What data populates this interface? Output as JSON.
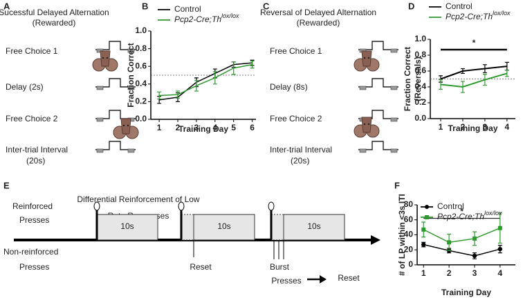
{
  "panel_a": {
    "label": "A",
    "title": [
      "Sucessful Delayed Alternation",
      "(Rewarded)"
    ],
    "steps": [
      "Free Choice 1",
      "Delay (2s)",
      "Free Choice 2",
      "Inter-trial Interval",
      "(20s)"
    ]
  },
  "panel_c": {
    "label": "C",
    "title": [
      "Reversal of Delayed Alternation",
      "(Rewarded)"
    ],
    "steps": [
      "Free Choice 1",
      "Delay (8s)",
      "Free Choice 2",
      "Inter-trial Interval",
      "(20s)"
    ]
  },
  "panel_e": {
    "label": "E",
    "title": [
      "Differential Reinforcement of Low",
      "Rate Responses"
    ],
    "reinforced": [
      "Reinforced",
      "Presses"
    ],
    "non_reinforced": [
      "Non-reinforced",
      "Presses"
    ],
    "intervals": [
      "10s",
      "10s",
      "10s"
    ],
    "reset": "Reset",
    "burst": [
      "Burst",
      "Presses"
    ],
    "burst_reset": "Reset"
  },
  "chart_data": [
    {
      "type": "line",
      "panel": "B",
      "x_label": "Training Day",
      "y_label": [
        "Fraction Correct"
      ],
      "x": [
        1,
        2,
        3,
        4,
        5,
        6
      ],
      "xlim": [
        0.55,
        6.2
      ],
      "xticks": [
        1,
        2,
        3,
        4,
        5,
        6
      ],
      "ylim": [
        0,
        1
      ],
      "yticks": [
        {
          "value": 0,
          "label": "0.0"
        },
        {
          "value": 0.2,
          "label": "0.2"
        },
        {
          "value": 0.4,
          "label": "0.4"
        },
        {
          "value": 0.6,
          "label": "0.6"
        },
        {
          "value": 0.8,
          "label": "0.8"
        },
        {
          "value": 1,
          "label": "1.0"
        }
      ],
      "reference_line": 0.5,
      "series": [
        {
          "name": "Control",
          "color": "#000000",
          "marker": "none",
          "values": [
            0.22,
            0.25,
            0.42,
            0.52,
            0.62,
            0.64
          ],
          "errors": [
            0.04,
            0.05,
            0.05,
            0.05,
            0.03,
            0.03
          ]
        },
        {
          "name": "Pcp2-Cre;Th",
          "name_superscript": "lox/lox",
          "color": "#2e9a2e",
          "marker": "none",
          "values": [
            0.27,
            0.28,
            0.38,
            0.47,
            0.58,
            0.62
          ],
          "errors": [
            0.04,
            0.04,
            0.06,
            0.07,
            0.07,
            0.04
          ]
        }
      ]
    },
    {
      "type": "line",
      "panel": "D",
      "x_label": "Training Day",
      "y_label": [
        "Fraction Correct",
        "(Reversals)"
      ],
      "x": [
        1,
        2,
        3,
        4
      ],
      "xlim": [
        0.53,
        4.38
      ],
      "xticks": [
        1,
        2,
        3,
        4
      ],
      "ylim": [
        0,
        1
      ],
      "yticks": [
        {
          "value": 0,
          "label": "0.0"
        },
        {
          "value": 0.2,
          "label": "0.2"
        },
        {
          "value": 0.4,
          "label": "0.4"
        },
        {
          "value": 0.6,
          "label": "0.6"
        },
        {
          "value": 0.8,
          "label": "0.8"
        },
        {
          "value": 1,
          "label": "1.0"
        }
      ],
      "reference_line": 0.5,
      "significance": {
        "x": [
          1,
          4
        ],
        "y": 0.87,
        "label": "*"
      },
      "series": [
        {
          "name": "Control",
          "color": "#000000",
          "marker": "none",
          "values": [
            0.5,
            0.6,
            0.63,
            0.66
          ],
          "errors": [
            0.04,
            0.03,
            0.05,
            0.05
          ]
        },
        {
          "name": "Pcp2-Cre;Th",
          "name_superscript": "lox/lox",
          "color": "#2e9a2e",
          "marker": "none",
          "values": [
            0.43,
            0.4,
            0.49,
            0.57
          ],
          "errors": [
            0.06,
            0.07,
            0.07,
            0.04
          ]
        }
      ]
    },
    {
      "type": "line",
      "panel": "F",
      "x_label": "Training Day",
      "y_label": [
        "# of LP within <3s ITI"
      ],
      "x": [
        1,
        2,
        3,
        4
      ],
      "xlim": [
        0.75,
        4.6
      ],
      "xticks": [
        1,
        2,
        3,
        4
      ],
      "ylim": [
        0,
        80
      ],
      "yticks": [
        0,
        20,
        40,
        60,
        80
      ],
      "significance": {
        "x": [
          1,
          4
        ],
        "y": 62,
        "label": "*"
      },
      "series": [
        {
          "name": "Control",
          "color": "#000000",
          "marker": "circle",
          "values": [
            27,
            19,
            12,
            21
          ],
          "errors": [
            3,
            3,
            4,
            5
          ]
        },
        {
          "name": "Pcp2-Cre;Th",
          "name_superscript": "lox/lox",
          "color": "#2e9a2e",
          "marker": "square",
          "values": [
            47,
            30,
            35,
            49
          ],
          "errors": [
            10,
            11,
            9,
            20
          ]
        }
      ]
    }
  ]
}
